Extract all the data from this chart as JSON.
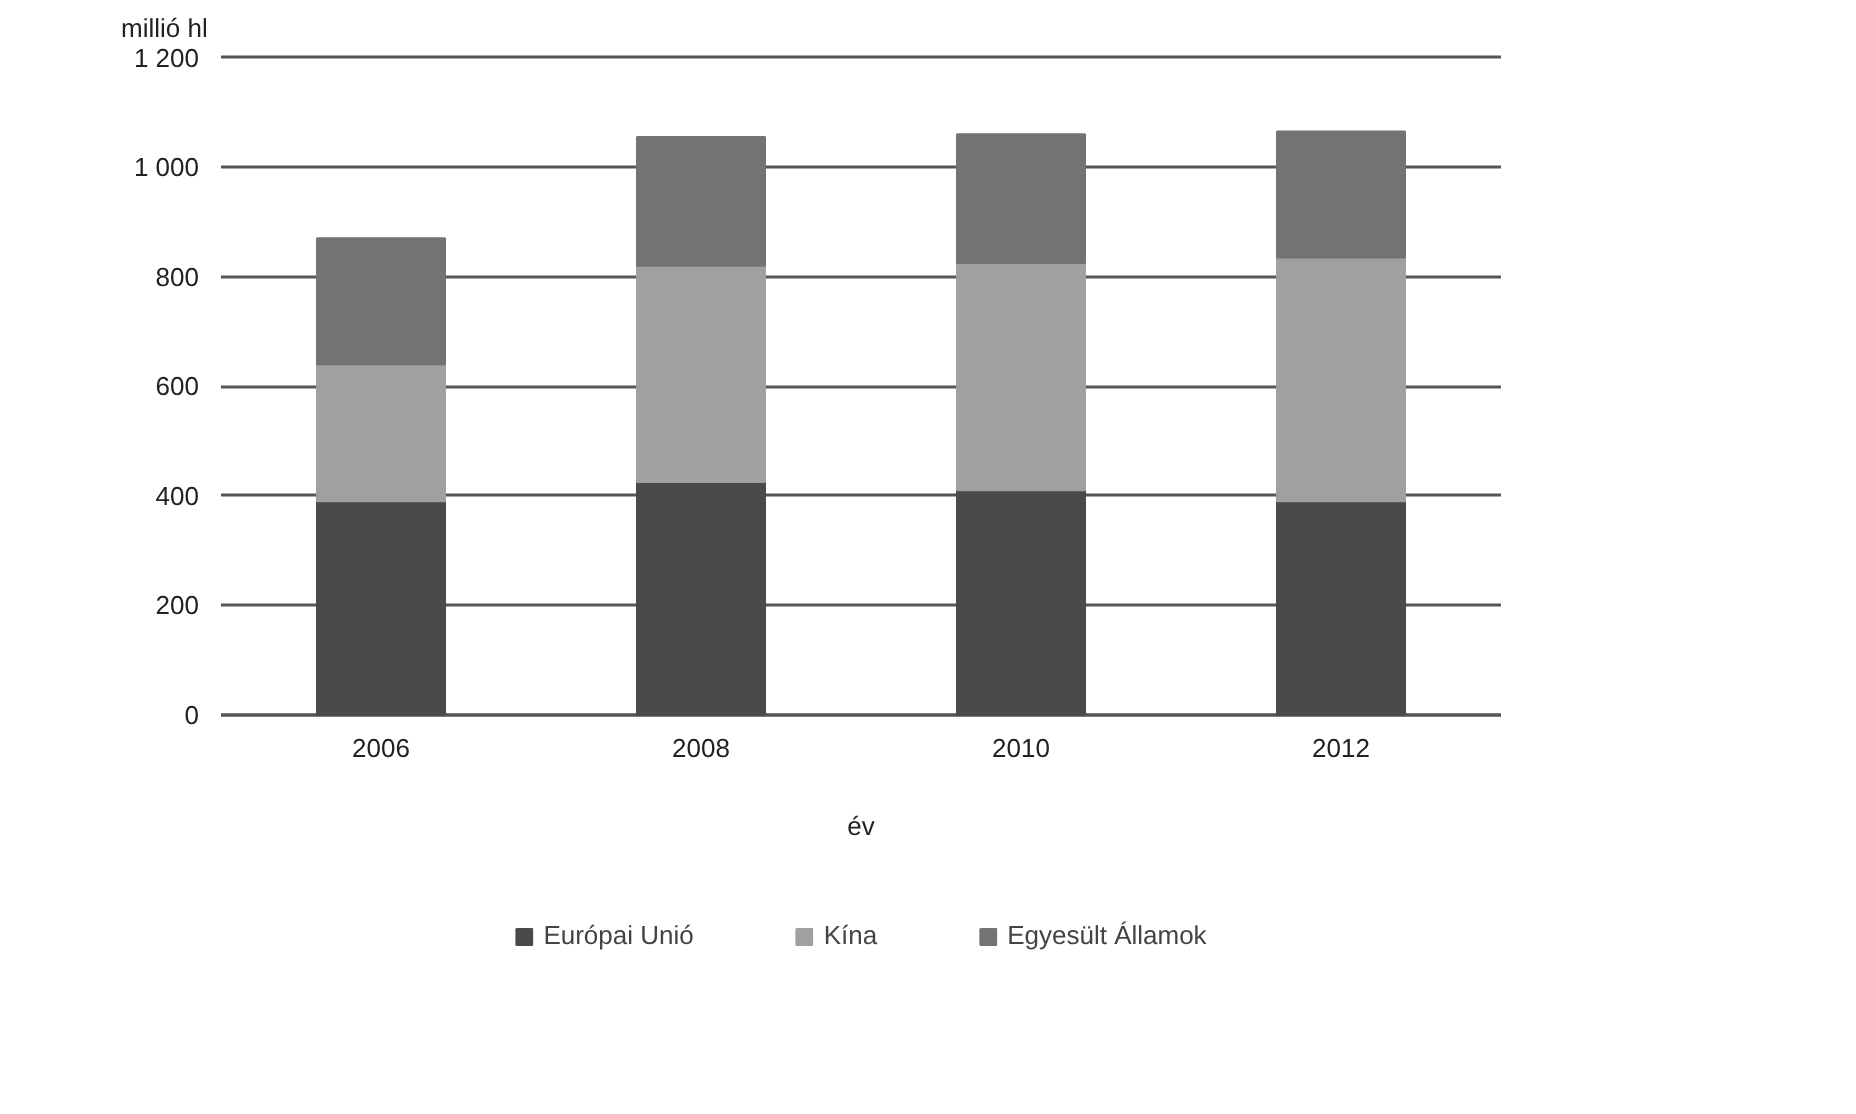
{
  "chart_data": {
    "type": "bar",
    "stacked": true,
    "ylabel": "millió hl",
    "xlabel": "év",
    "categories": [
      "2006",
      "2008",
      "2010",
      "2012"
    ],
    "series": [
      {
        "name": "Európai Unió",
        "color": "#4a4a4a",
        "values": [
          390,
          425,
          410,
          390
        ]
      },
      {
        "name": "Kína",
        "color": "#a0a0a0",
        "values": [
          250,
          395,
          415,
          445
        ]
      },
      {
        "name": "Egyesült Államok",
        "color": "#737373",
        "values": [
          230,
          235,
          235,
          230
        ]
      }
    ],
    "ylim": [
      0,
      1200
    ],
    "yticks": [
      0,
      200,
      400,
      600,
      800,
      {
        "value": 1000,
        "label": "1 000"
      },
      {
        "value": 1200,
        "label": "1 200"
      }
    ],
    "grid": "y",
    "legend": "bottom"
  }
}
